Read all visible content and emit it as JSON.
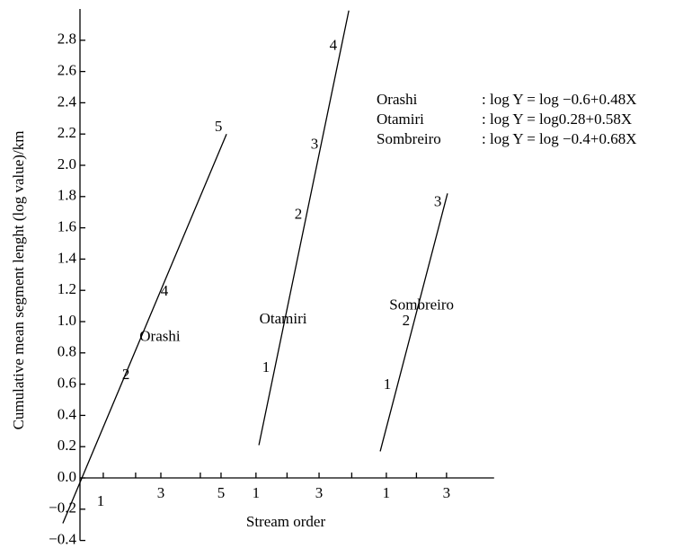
{
  "chart_data": {
    "type": "line",
    "ylabel": "Cumulative mean segment lenght (log value)/km",
    "xlabel": "Stream order",
    "xlim": [
      -0.6,
      12.8
    ],
    "ylim": [
      -0.4,
      3.0
    ],
    "yticks": [
      {
        "value": -0.4,
        "label": "−0.4"
      },
      {
        "value": -0.2,
        "label": "−0.2"
      },
      {
        "value": 0,
        "label": "0.0"
      },
      0.2,
      0.4,
      0.6,
      0.8,
      {
        "value": 1,
        "label": "1.0"
      },
      1.2,
      1.4,
      1.6,
      1.8,
      {
        "value": 2,
        "label": "2.0"
      },
      2.2,
      2.4,
      2.6,
      2.8
    ],
    "xticks": [
      {
        "value": 2.5,
        "label": "3"
      },
      {
        "value": 4.36,
        "label": "5"
      },
      {
        "value": 5.44,
        "label": "1"
      },
      {
        "value": 7.39,
        "label": "3"
      },
      {
        "value": 9.47,
        "label": "1"
      },
      {
        "value": 11.33,
        "label": "3"
      }
    ],
    "xminor_ticks": [
      0.72,
      1.72,
      3.72,
      6.4,
      8.4,
      10.4
    ],
    "series": [
      {
        "name": "Orashi",
        "color": "#000000",
        "x": [
          -0.53,
          4.53
        ],
        "y": [
          -0.29,
          2.2
        ],
        "label_at": [
          2.47,
          0.9
        ]
      },
      {
        "name": "Otamiri",
        "color": "#000000",
        "x": [
          5.53,
          8.31
        ],
        "y": [
          0.21,
          2.99
        ],
        "label_at": [
          6.28,
          1.01
        ]
      },
      {
        "name": "Sombreiro",
        "color": "#000000",
        "x": [
          9.28,
          11.36
        ],
        "y": [
          0.17,
          1.82
        ],
        "label_at": [
          10.56,
          1.1
        ]
      }
    ],
    "annotations": [
      {
        "text": "1",
        "x": 0.64,
        "y": -0.155
      },
      {
        "text": "2",
        "x": 1.42,
        "y": 0.655
      },
      {
        "text": "4",
        "x": 2.61,
        "y": 1.19
      },
      {
        "text": "5",
        "x": 4.28,
        "y": 2.24
      },
      {
        "text": "1",
        "x": 5.75,
        "y": 0.7
      },
      {
        "text": "2",
        "x": 6.75,
        "y": 1.68
      },
      {
        "text": "3",
        "x": 7.25,
        "y": 2.13
      },
      {
        "text": "4",
        "x": 7.83,
        "y": 2.76
      },
      {
        "text": "1",
        "x": 9.5,
        "y": 0.59
      },
      {
        "text": "2",
        "x": 10.08,
        "y": 1.0
      },
      {
        "text": "3",
        "x": 11.06,
        "y": 1.76
      }
    ],
    "equations": [
      {
        "name": "Orashi",
        "formula": ": log Y = log −0.6+0.48X"
      },
      {
        "name": "Otamiri",
        "formula": ": log Y = log0.28+0.58X"
      },
      {
        "name": "Sombreiro",
        "formula": ": log Y = log −0.4+0.68X"
      }
    ]
  }
}
